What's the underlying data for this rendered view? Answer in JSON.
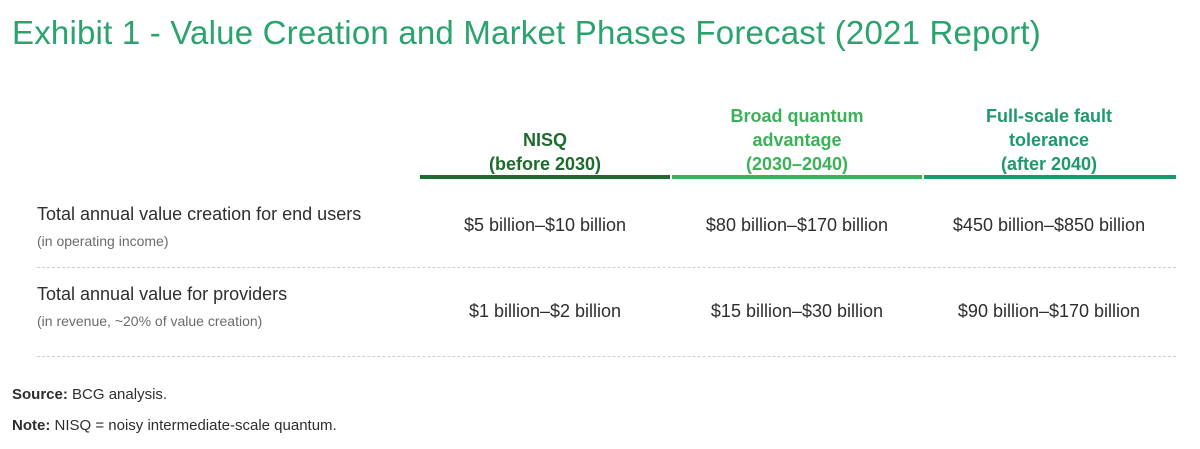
{
  "title": "Exhibit 1 - Value Creation and Market Phases Forecast (2021 Report)",
  "columns": [
    {
      "line1": "",
      "line2": "NISQ",
      "line3": "(before 2030)"
    },
    {
      "line1": "Broad quantum",
      "line2": "advantage",
      "line3": "(2030–2040)"
    },
    {
      "line1": "Full-scale fault",
      "line2": "tolerance",
      "line3": "(after 2040)"
    }
  ],
  "rows": [
    {
      "label": "Total annual value creation for end users",
      "sublabel": "(in operating income)",
      "values": [
        "$5 billion–$10 billion",
        "$80 billion–$170 billion",
        "$450 billion–$850 billion"
      ]
    },
    {
      "label": "Total annual value for providers",
      "sublabel": "(in revenue, ~20% of value creation)",
      "values": [
        "$1 billion–$2 billion",
        "$15 billion–$30 billion",
        "$90 billion–$170 billion"
      ]
    }
  ],
  "footer": {
    "source_label": "Source:",
    "source_text": "BCG analysis.",
    "note_label": "Note:",
    "note_text": "NISQ = noisy intermediate-scale quantum."
  },
  "colors": {
    "title": "#2aa36d",
    "nisq": "#1e6b2f",
    "broad": "#3bb25a",
    "fault": "#1e9a6a"
  }
}
